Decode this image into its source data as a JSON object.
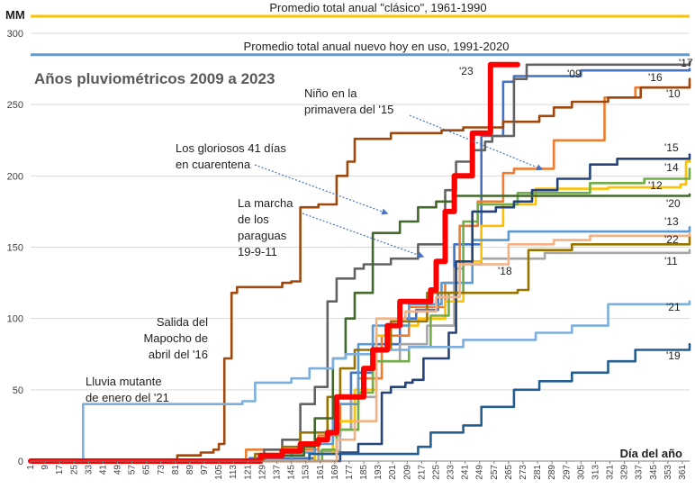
{
  "chart_data": {
    "type": "line",
    "title": "Años pluviométricos 2009 a 2023",
    "ylabel": "MM",
    "xlabel": "Día del año",
    "ylim": [
      0,
      300
    ],
    "xlim": [
      1,
      365
    ],
    "yticks": [
      0,
      50,
      100,
      150,
      200,
      250,
      300
    ],
    "xticks": [
      "1",
      "9",
      "17",
      "25",
      "33",
      "41",
      "49",
      "57",
      "65",
      "73",
      "81",
      "89",
      "97",
      "105",
      "113",
      "121",
      "129",
      "137",
      "145",
      "153",
      "161",
      "169",
      "177",
      "185",
      "193",
      "201",
      "209",
      "217",
      "225",
      "233",
      "241",
      "249",
      "257",
      "265",
      "273",
      "281",
      "289",
      "297",
      "305",
      "313",
      "321",
      "329",
      "337",
      "345",
      "353",
      "361"
    ],
    "reference_lines": [
      {
        "name": "Promedio total anual \"clásico\", 1961-1990",
        "value": 312,
        "color": "#FFC000"
      },
      {
        "name": "Promedio total anual nuevo hoy en uso, 1991-2020",
        "value": 285,
        "color": "#5B9BD5"
      }
    ],
    "series": [
      {
        "name": "'09",
        "color": "#4472C4",
        "points": [
          [
            1,
            0
          ],
          [
            120,
            0
          ],
          [
            122,
            2
          ],
          [
            158,
            5
          ],
          [
            170,
            22
          ],
          [
            178,
            62
          ],
          [
            190,
            82
          ],
          [
            205,
            100
          ],
          [
            214,
            106
          ],
          [
            226,
            118
          ],
          [
            235,
            152
          ],
          [
            250,
            228
          ],
          [
            262,
            266
          ],
          [
            268,
            270
          ],
          [
            305,
            274
          ],
          [
            365,
            275
          ]
        ]
      },
      {
        "name": "'10",
        "color": "#ED7D31",
        "points": [
          [
            1,
            0
          ],
          [
            118,
            0
          ],
          [
            120,
            8
          ],
          [
            160,
            18
          ],
          [
            172,
            40
          ],
          [
            182,
            58
          ],
          [
            195,
            88
          ],
          [
            210,
            108
          ],
          [
            230,
            125
          ],
          [
            238,
            165
          ],
          [
            248,
            182
          ],
          [
            262,
            202
          ],
          [
            268,
            205
          ],
          [
            290,
            225
          ],
          [
            318,
            255
          ],
          [
            335,
            262
          ],
          [
            365,
            264
          ]
        ]
      },
      {
        "name": "'11",
        "color": "#A5A5A5",
        "points": [
          [
            1,
            0
          ],
          [
            150,
            0
          ],
          [
            160,
            7
          ],
          [
            172,
            22
          ],
          [
            178,
            45
          ],
          [
            192,
            70
          ],
          [
            205,
            82
          ],
          [
            220,
            95
          ],
          [
            235,
            135
          ],
          [
            240,
            138
          ],
          [
            250,
            142
          ],
          [
            285,
            146
          ],
          [
            365,
            148
          ]
        ]
      },
      {
        "name": "'12",
        "color": "#FFC000",
        "points": [
          [
            1,
            0
          ],
          [
            150,
            0
          ],
          [
            158,
            5
          ],
          [
            168,
            28
          ],
          [
            180,
            50
          ],
          [
            192,
            88
          ],
          [
            200,
            95
          ],
          [
            215,
            100
          ],
          [
            230,
            112
          ],
          [
            240,
            140
          ],
          [
            250,
            165
          ],
          [
            262,
            180
          ],
          [
            280,
            191
          ],
          [
            320,
            192
          ],
          [
            360,
            194
          ],
          [
            363,
            210
          ],
          [
            365,
            212
          ]
        ]
      },
      {
        "name": "'13",
        "color": "#5B9BD5",
        "points": [
          [
            1,
            0
          ],
          [
            140,
            0
          ],
          [
            145,
            6
          ],
          [
            158,
            12
          ],
          [
            168,
            40
          ],
          [
            182,
            82
          ],
          [
            190,
            95
          ],
          [
            210,
            110
          ],
          [
            228,
            125
          ],
          [
            245,
            155
          ],
          [
            265,
            161
          ],
          [
            365,
            164
          ]
        ]
      },
      {
        "name": "'14",
        "color": "#70AD47",
        "points": [
          [
            1,
            0
          ],
          [
            150,
            0
          ],
          [
            162,
            8
          ],
          [
            170,
            22
          ],
          [
            182,
            48
          ],
          [
            190,
            70
          ],
          [
            210,
            80
          ],
          [
            222,
            102
          ],
          [
            232,
            118
          ],
          [
            240,
            168
          ],
          [
            248,
            180
          ],
          [
            270,
            188
          ],
          [
            310,
            195
          ],
          [
            340,
            198
          ],
          [
            365,
            205
          ]
        ]
      },
      {
        "name": "'15",
        "color": "#264478",
        "points": [
          [
            1,
            0
          ],
          [
            165,
            0
          ],
          [
            172,
            6
          ],
          [
            182,
            12
          ],
          [
            195,
            48
          ],
          [
            200,
            52
          ],
          [
            208,
            55
          ],
          [
            212,
            57
          ],
          [
            218,
            72
          ],
          [
            232,
            90
          ],
          [
            236,
            140
          ],
          [
            245,
            175
          ],
          [
            258,
            178
          ],
          [
            268,
            182
          ],
          [
            278,
            190
          ],
          [
            292,
            198
          ],
          [
            310,
            208
          ],
          [
            325,
            212
          ],
          [
            365,
            215
          ]
        ]
      },
      {
        "name": "'16",
        "color": "#9E480E",
        "points": [
          [
            1,
            0
          ],
          [
            80,
            0
          ],
          [
            82,
            4
          ],
          [
            95,
            6
          ],
          [
            102,
            8
          ],
          [
            105,
            12
          ],
          [
            108,
            72
          ],
          [
            112,
            118
          ],
          [
            115,
            122
          ],
          [
            125,
            122
          ],
          [
            140,
            125
          ],
          [
            145,
            126
          ],
          [
            150,
            178
          ],
          [
            160,
            180
          ],
          [
            170,
            200
          ],
          [
            176,
            210
          ],
          [
            180,
            226
          ],
          [
            200,
            230
          ],
          [
            228,
            232
          ],
          [
            240,
            234
          ],
          [
            248,
            234
          ],
          [
            262,
            238
          ],
          [
            282,
            242
          ],
          [
            290,
            248
          ],
          [
            300,
            252
          ],
          [
            320,
            255
          ],
          [
            338,
            262
          ],
          [
            365,
            268
          ]
        ]
      },
      {
        "name": "'17",
        "color": "#636363",
        "points": [
          [
            1,
            0
          ],
          [
            120,
            0
          ],
          [
            130,
            8
          ],
          [
            140,
            15
          ],
          [
            150,
            40
          ],
          [
            158,
            52
          ],
          [
            165,
            112
          ],
          [
            170,
            128
          ],
          [
            180,
            135
          ],
          [
            185,
            138
          ],
          [
            200,
            142
          ],
          [
            215,
            152
          ],
          [
            230,
            190
          ],
          [
            236,
            210
          ],
          [
            245,
            218
          ],
          [
            252,
            224
          ],
          [
            256,
            228
          ],
          [
            268,
            268
          ],
          [
            275,
            278
          ],
          [
            365,
            280
          ]
        ]
      },
      {
        "name": "'18",
        "color": "#997300",
        "points": [
          [
            1,
            0
          ],
          [
            120,
            0
          ],
          [
            125,
            5
          ],
          [
            140,
            10
          ],
          [
            150,
            20
          ],
          [
            165,
            45
          ],
          [
            172,
            65
          ],
          [
            180,
            78
          ],
          [
            200,
            98
          ],
          [
            220,
            118
          ],
          [
            250,
            118
          ],
          [
            270,
            120
          ],
          [
            276,
            148
          ],
          [
            300,
            152
          ],
          [
            365,
            158
          ]
        ]
      },
      {
        "name": "'19",
        "color": "#255E91",
        "points": [
          [
            1,
            0
          ],
          [
            120,
            0
          ],
          [
            155,
            5
          ],
          [
            215,
            10
          ],
          [
            222,
            20
          ],
          [
            240,
            25
          ],
          [
            250,
            38
          ],
          [
            268,
            50
          ],
          [
            282,
            56
          ],
          [
            300,
            62
          ],
          [
            320,
            70
          ],
          [
            335,
            78
          ],
          [
            365,
            82
          ]
        ]
      },
      {
        "name": "'20",
        "color": "#43682B",
        "points": [
          [
            1,
            0
          ],
          [
            120,
            0
          ],
          [
            130,
            4
          ],
          [
            152,
            10
          ],
          [
            158,
            30
          ],
          [
            168,
            72
          ],
          [
            175,
            100
          ],
          [
            180,
            118
          ],
          [
            190,
            160
          ],
          [
            205,
            168
          ],
          [
            215,
            178
          ],
          [
            225,
            182
          ],
          [
            235,
            186
          ],
          [
            365,
            187
          ]
        ]
      },
      {
        "name": "'21",
        "color": "#7CAFDD",
        "points": [
          [
            1,
            0
          ],
          [
            28,
            0
          ],
          [
            30,
            40
          ],
          [
            100,
            40
          ],
          [
            112,
            40
          ],
          [
            118,
            42
          ],
          [
            125,
            55
          ],
          [
            145,
            58
          ],
          [
            155,
            65
          ],
          [
            168,
            72
          ],
          [
            175,
            75
          ],
          [
            190,
            78
          ],
          [
            210,
            80
          ],
          [
            240,
            85
          ],
          [
            280,
            90
          ],
          [
            300,
            95
          ],
          [
            320,
            110
          ],
          [
            365,
            112
          ]
        ]
      },
      {
        "name": "'22",
        "color": "#F4B183",
        "points": [
          [
            1,
            0
          ],
          [
            165,
            0
          ],
          [
            170,
            15
          ],
          [
            180,
            28
          ],
          [
            192,
            100
          ],
          [
            208,
            105
          ],
          [
            225,
            115
          ],
          [
            238,
            138
          ],
          [
            265,
            152
          ],
          [
            290,
            155
          ],
          [
            310,
            158
          ],
          [
            365,
            160
          ]
        ]
      },
      {
        "name": "'23",
        "color": "#FF0000",
        "points": [
          [
            1,
            0
          ],
          [
            120,
            0
          ],
          [
            128,
            4
          ],
          [
            140,
            7
          ],
          [
            150,
            12
          ],
          [
            160,
            15
          ],
          [
            165,
            20
          ],
          [
            170,
            45
          ],
          [
            185,
            65
          ],
          [
            190,
            78
          ],
          [
            198,
            95
          ],
          [
            205,
            112
          ],
          [
            222,
            120
          ],
          [
            225,
            140
          ],
          [
            230,
            175
          ],
          [
            235,
            200
          ],
          [
            245,
            230
          ],
          [
            255,
            278
          ],
          [
            270,
            278
          ]
        ]
      }
    ],
    "series_labels": [
      "'23",
      "'09",
      "'17",
      "'16",
      "'10",
      "'15",
      "'14",
      "'12",
      "'20",
      "'13",
      "'22",
      "'11",
      "'18",
      "'21",
      "'19"
    ],
    "annotations": [
      {
        "id": "nino",
        "lines": [
          "Niño en la",
          "primavera del '15"
        ]
      },
      {
        "id": "cuarentena",
        "lines": [
          "Los gloriosos 41 días",
          "en cuarentena"
        ]
      },
      {
        "id": "paraguas",
        "lines": [
          "La marcha",
          "de los",
          "paraguas",
          "19-9-11"
        ]
      },
      {
        "id": "mapocho",
        "lines": [
          "Salida del",
          "Mapocho de",
          "abril del '16"
        ]
      },
      {
        "id": "mutante",
        "lines": [
          "Lluvia mutante",
          "de enero del '21"
        ]
      }
    ]
  }
}
